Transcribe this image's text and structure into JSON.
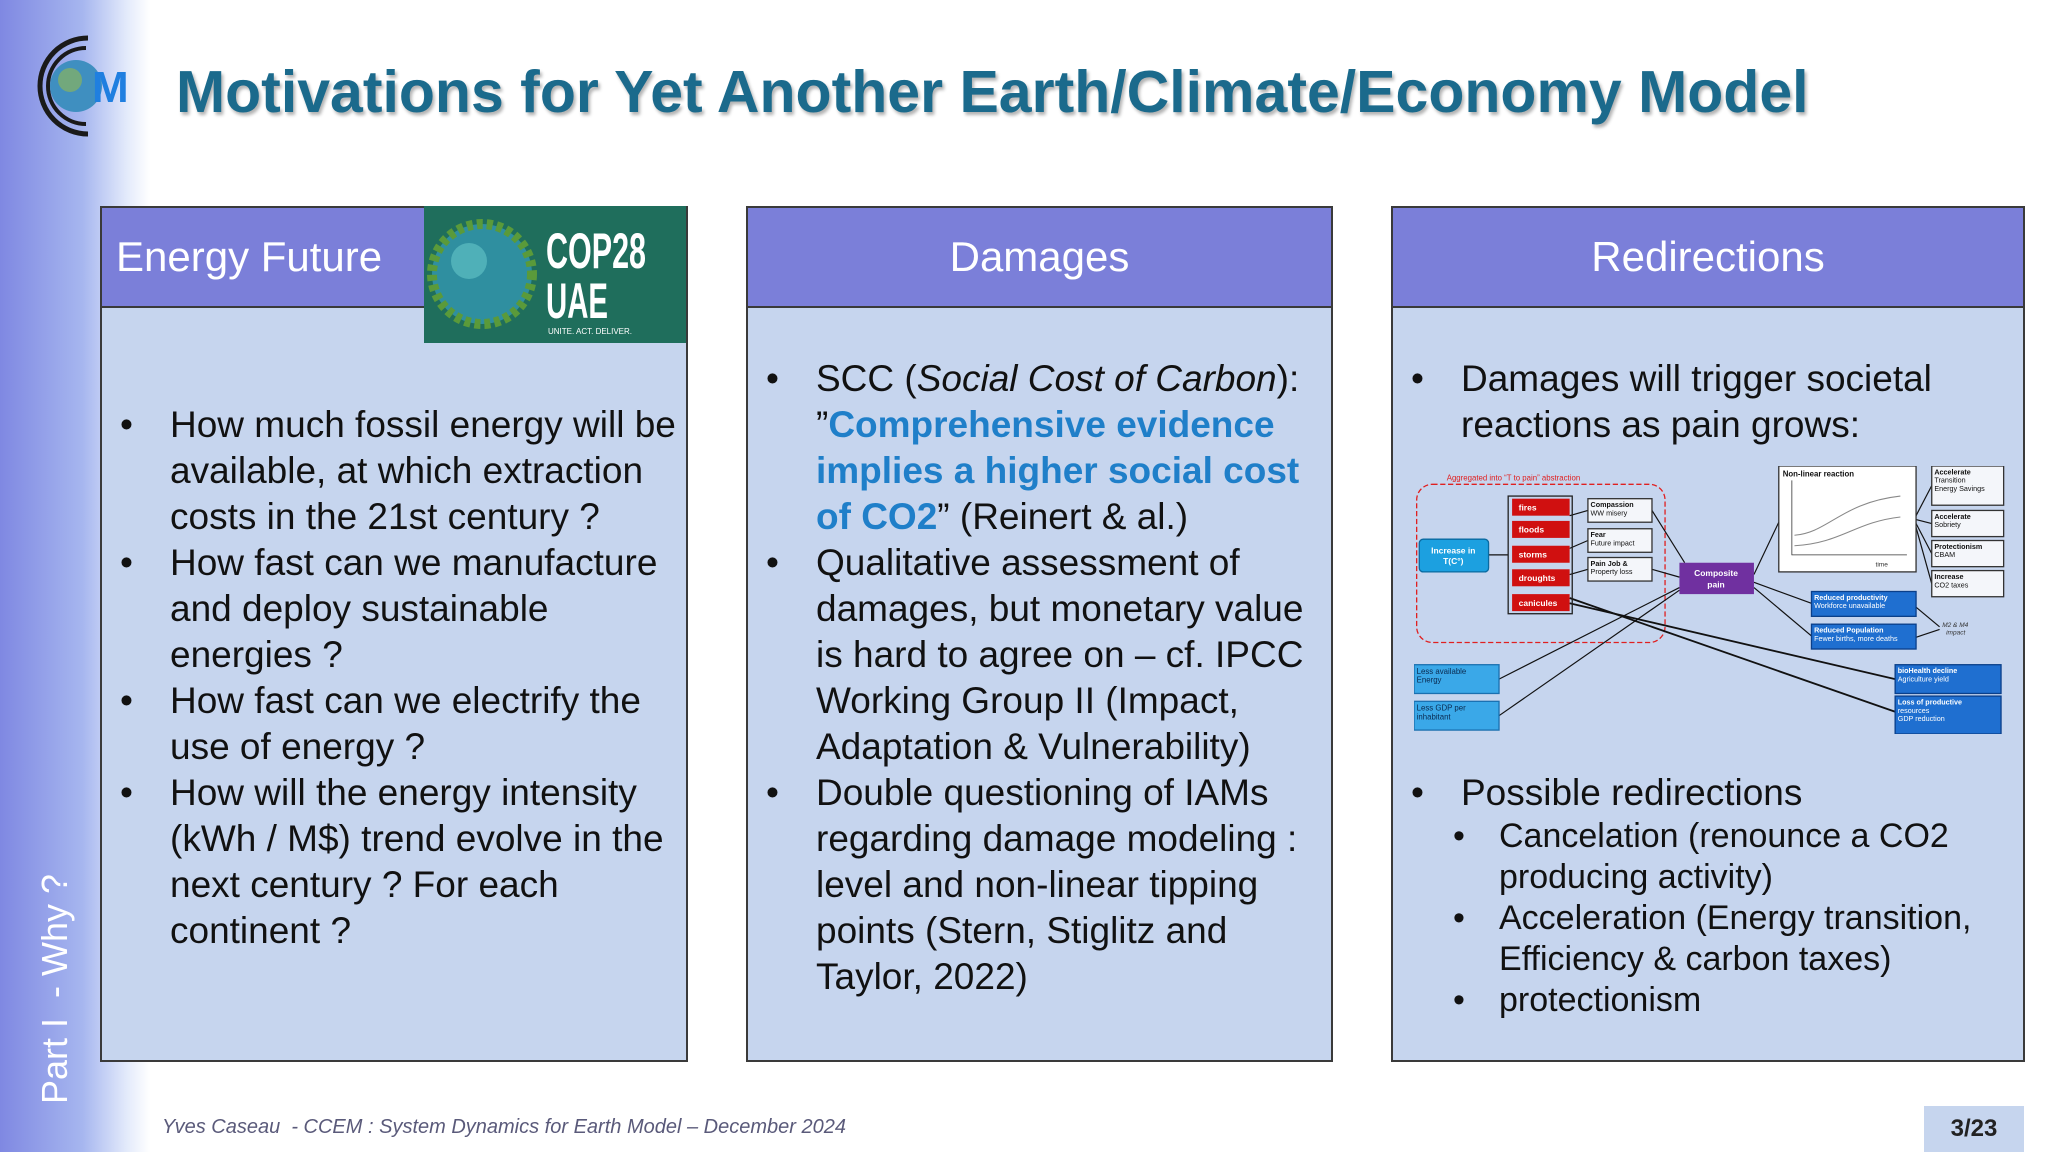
{
  "logo": {
    "text": "M"
  },
  "title": "Motivations for Yet Another Earth/Climate/Economy Model",
  "side_label": "Part I  - Why ?",
  "cop28": {
    "line1": "COP28",
    "line2": "UAE",
    "tagline": "UNITE. ACT. DELIVER."
  },
  "panels": [
    {
      "header": "Energy Future",
      "bullets": [
        "How much fossil energy will be available, at which extraction costs in the 21st century ?",
        "How fast can we manufacture and deploy sustainable energies ?",
        "How fast can we electrify the use of energy ?",
        "How will the energy intensity (kWh / M$) trend evolve in the next century ? For each continent ?"
      ]
    },
    {
      "header": "Damages",
      "bullets": [
        [
          "SCC (",
          "Social Cost of Carbon",
          "): ”",
          "Comprehensive evidence implies a higher social cost of CO2",
          "” (Reinert & al.)"
        ],
        "Qualitative assessment of damages, but monetary value is hard to agree on – cf. IPCC Working Group II (Impact, Adaptation & Vulnerability)",
        "Double questioning of IAMs regarding damage modeling : level and non-linear tipping points (Stern, Stiglitz and Taylor, 2022)"
      ]
    },
    {
      "header": "Redirections",
      "bullets": [
        "Damages will trigger societal reactions as pain grows:",
        "Possible redirections"
      ],
      "sub_bullets": [
        "Cancelation (renounce a CO2 producing activity)",
        "Acceleration (Energy transition, Efficiency & carbon taxes)",
        "protectionism"
      ],
      "diagram": {
        "aggregate_label": "Aggregated into “T to pain” abstraction",
        "increase": [
          "Increase in",
          "T(C°)"
        ],
        "hazards": [
          "fires",
          "floods",
          "storms",
          "droughts",
          "canicules"
        ],
        "pains": [
          [
            "Compassion",
            "WW misery"
          ],
          [
            "Fear",
            "Future impact"
          ],
          [
            "Pain  Job &",
            "Property loss"
          ]
        ],
        "composite": [
          "Composite",
          "pain"
        ],
        "reaction": "Non-linear reaction",
        "reaction_axis": "time",
        "reactions": [
          [
            "Accelerate",
            "Transition",
            "Energy Savings"
          ],
          [
            "Accelerate",
            "Sobriety"
          ],
          [
            "Protectionism",
            "CBAM"
          ],
          [
            "Increase",
            "CO2 taxes"
          ]
        ],
        "effects": [
          [
            "Reduced productivity",
            "Workforce unavailable"
          ],
          [
            "Reduced Population",
            "Fewer births, more deaths"
          ]
        ],
        "impact": [
          "M2 & M4",
          "impact"
        ],
        "outcomes": [
          [
            "bioHealth decline",
            "Agriculture yield"
          ],
          [
            "Loss of productive",
            "resources",
            "GDP reduction"
          ]
        ],
        "inputs": [
          [
            "Less available",
            "Energy"
          ],
          [
            "Less GDP per",
            "inhabitant"
          ]
        ]
      }
    }
  ],
  "footer": {
    "text": "Yves Caseau  - CCEM : System Dynamics for Earth Model – December 2024",
    "page": "3/23"
  }
}
